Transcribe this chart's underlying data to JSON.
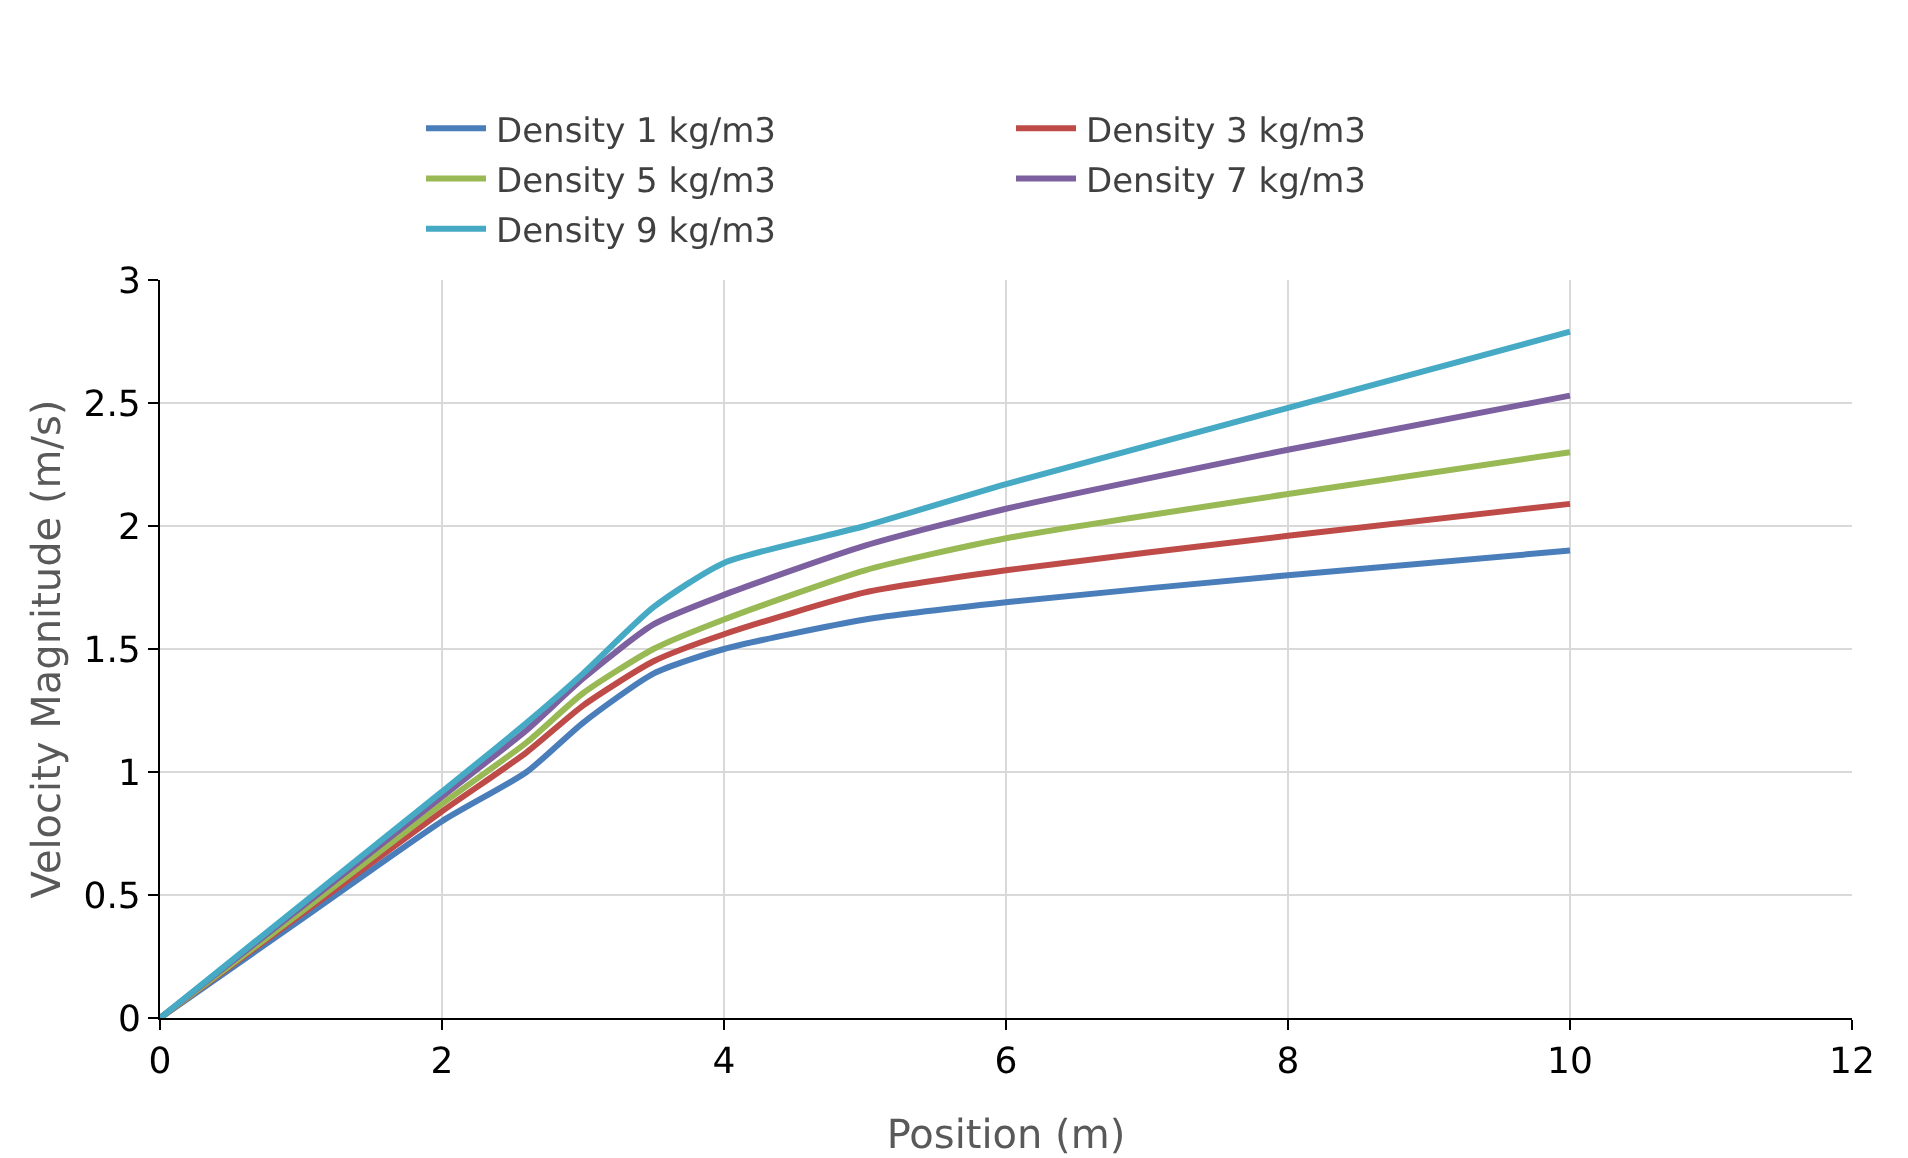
{
  "chart_data": {
    "type": "line",
    "xlabel": "Position (m)",
    "ylabel": "Velocity Magnitude (m/s)",
    "x": [
      0,
      1,
      2,
      2.6,
      3,
      3.5,
      4,
      5,
      6,
      8,
      10
    ],
    "series": [
      {
        "name": "Density 1 kg/m3",
        "color": "#4a7ebb",
        "values": [
          0,
          0.4,
          0.8,
          1.0,
          1.2,
          1.4,
          1.5,
          1.62,
          1.69,
          1.8,
          1.9
        ]
      },
      {
        "name": "Density 3 kg/m3",
        "color": "#be4b48",
        "values": [
          0,
          0.42,
          0.84,
          1.08,
          1.27,
          1.45,
          1.56,
          1.73,
          1.82,
          1.96,
          2.09
        ]
      },
      {
        "name": "Density 5 kg/m3",
        "color": "#98b954",
        "values": [
          0,
          0.43,
          0.87,
          1.12,
          1.32,
          1.5,
          1.62,
          1.82,
          1.95,
          2.13,
          2.3
        ]
      },
      {
        "name": "Density 7 kg/m3",
        "color": "#7d60a0",
        "values": [
          0,
          0.45,
          0.9,
          1.17,
          1.38,
          1.6,
          1.72,
          1.92,
          2.07,
          2.31,
          2.53
        ]
      },
      {
        "name": "Density 9 kg/m3",
        "color": "#46aac5",
        "values": [
          0,
          0.46,
          0.92,
          1.2,
          1.4,
          1.67,
          1.85,
          2.0,
          2.17,
          2.48,
          2.79
        ]
      }
    ],
    "xlim": [
      0,
      12
    ],
    "xticks": [
      0,
      2,
      4,
      6,
      8,
      10,
      12
    ],
    "ylim": [
      0,
      3
    ],
    "yticks": [
      0,
      0.5,
      1,
      1.5,
      2,
      2.5,
      3
    ],
    "grid": true,
    "legend": "top",
    "marker": "none",
    "line_style": "solid"
  }
}
